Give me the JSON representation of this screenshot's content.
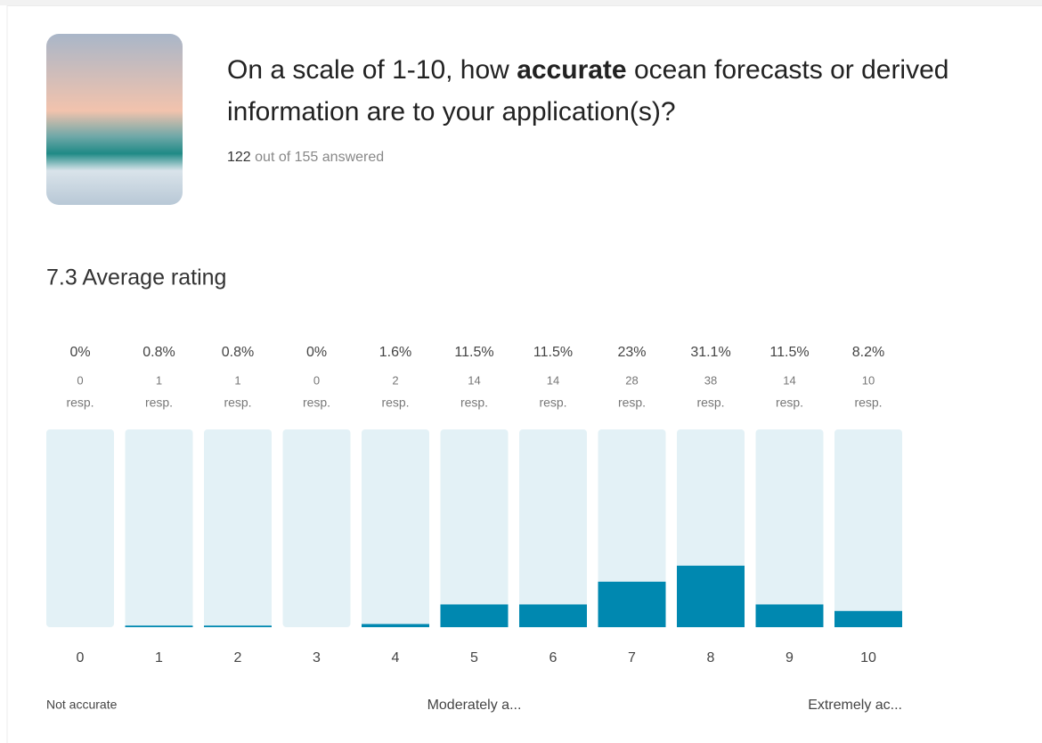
{
  "header": {
    "question": [
      "On a scale of 1-10, how ",
      "accurate",
      " ocean forecasts or derived",
      "information are to your application(s)?"
    ],
    "answered_count": "122",
    "answered_text": "out of 155 answered"
  },
  "chart_data": {
    "type": "bar",
    "title": "7.3 Average rating",
    "categories": [
      "0",
      "1",
      "2",
      "3",
      "4",
      "5",
      "6",
      "7",
      "8",
      "9",
      "10"
    ],
    "values": [
      0,
      0.8,
      0.8,
      0,
      1.6,
      11.5,
      11.5,
      23,
      31.1,
      11.5,
      8.2
    ],
    "value_labels": [
      "0%",
      "0.8%",
      "0.8%",
      "0%",
      "1.6%",
      "11.5%",
      "11.5%",
      "23%",
      "31.1%",
      "11.5%",
      "8.2%"
    ],
    "counts": [
      0,
      1,
      1,
      0,
      2,
      14,
      14,
      28,
      38,
      14,
      10
    ],
    "count_unit": "resp.",
    "ylim": [
      0,
      100
    ],
    "color": "#0088b0",
    "track_color": "#e3f1f6",
    "scale_labels": [
      "Not accurate",
      "Moderately a...",
      "Extremely ac..."
    ]
  }
}
